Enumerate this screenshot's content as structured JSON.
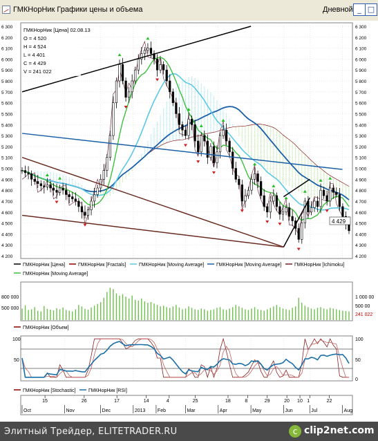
{
  "window": {
    "title": "ГМКНорНик Графики цены и объема",
    "period": "Дневной",
    "btn_min": "_",
    "btn_max": "□",
    "btn_close": "×"
  },
  "info_box": [
    "ГМКНорНик [Цена] 02.08.13",
    "O = 4 520",
    "H = 4 524",
    "L = 4 401",
    "C = 4 429",
    "V = 241 022"
  ],
  "chart_data": [
    {
      "type": "candlestick",
      "y_ticks": [
        "4 200",
        "4 300",
        "4 400",
        "4 500",
        "4 600",
        "4 700",
        "4 800",
        "4 900",
        "5 000",
        "5 100",
        "5 200",
        "5 300",
        "5 400",
        "5 500",
        "5 600",
        "5 700",
        "5 800",
        "5 900",
        "6 000",
        "6 100",
        "6 200",
        "6 300"
      ],
      "last_price_label": "4 429",
      "ylim": [
        4200,
        6300
      ],
      "close_series": [
        4980,
        4960,
        4950,
        4900,
        4880,
        4860,
        4840,
        4830,
        4850,
        4820,
        4800,
        4780,
        4820,
        4800,
        4760,
        4740,
        4720,
        4700,
        4650,
        4600,
        4570,
        4620,
        4700,
        4760,
        4820,
        4900,
        4980,
        5100,
        5300,
        5600,
        5800,
        5950,
        5800,
        5650,
        5700,
        5800,
        5900,
        6000,
        6050,
        6080,
        6100,
        6050,
        6000,
        5900,
        5950,
        5900,
        5800,
        5700,
        5600,
        5500,
        5400,
        5350,
        5300,
        5450,
        5400,
        5250,
        5150,
        5300,
        5250,
        5100,
        5200,
        5050,
        5150,
        5300,
        5350,
        5250,
        5150,
        5000,
        4900,
        4850,
        4700,
        4750,
        4800,
        4900,
        4950,
        4880,
        4750,
        4650,
        4600,
        4700,
        4750,
        4650,
        4580,
        4600,
        4640,
        4560,
        4520,
        4450,
        4350,
        4500,
        4700,
        4600,
        4640,
        4700,
        4650,
        4800,
        4750,
        4700,
        4820,
        4780,
        4760,
        4650,
        4560,
        4500,
        4429
      ],
      "legend": [
        "ГМКНорНик [Цена]",
        "ГМКНорНик [Fractals]",
        "ГМКНорНик [Moving Average]",
        "ГМКНорНик [Moving Average]",
        "ГМКНорНик [Ichimoku]",
        "ГМКНорНик [Moving Average]"
      ],
      "trendlines": [
        {
          "from": [
            "Oct",
            5700
          ],
          "to": [
            "May",
            6300
          ]
        },
        {
          "from": [
            "Oct",
            5100
          ],
          "to": [
            "Jun",
            4280
          ]
        },
        {
          "from": [
            "Oct",
            4570
          ],
          "to": [
            "Jun",
            4280
          ]
        },
        {
          "from": [
            "Oct",
            5320
          ],
          "to": [
            "Aug",
            4990
          ]
        },
        {
          "from": [
            "Jun",
            4740
          ],
          "to": [
            "Jul",
            4900
          ]
        },
        {
          "from": [
            "Jun",
            4280
          ],
          "to": [
            "Jul",
            4730
          ]
        }
      ]
    },
    {
      "type": "bar",
      "y_ticks_left": [
        "800 000",
        "500 000"
      ],
      "y_ticks_right": [
        "1 000 00",
        "500 00"
      ],
      "last_value_label": "241 022",
      "legend": [
        "ГМКНорНик [Объем]"
      ],
      "values": [
        320,
        410,
        280,
        300,
        360,
        260,
        240,
        390,
        310,
        290,
        270,
        330,
        300,
        350,
        280,
        260,
        240,
        300,
        420,
        380,
        310,
        290,
        350,
        400,
        450,
        500,
        620,
        780,
        900,
        860,
        740,
        680,
        720,
        650,
        600,
        680,
        560,
        540,
        600,
        520,
        480,
        500,
        460,
        420,
        380,
        400,
        360,
        340,
        380,
        420,
        350,
        300,
        320,
        380,
        340,
        300,
        280,
        320,
        300,
        260,
        280,
        300,
        340,
        360,
        300,
        280,
        320,
        360,
        420,
        380,
        340,
        300,
        280,
        320,
        360,
        300,
        280,
        260,
        300,
        340,
        380,
        420,
        360,
        320,
        300,
        280,
        340,
        380,
        620,
        480,
        400,
        360,
        320,
        300,
        340,
        360,
        320,
        300,
        340,
        320,
        300,
        280,
        260,
        250,
        241
      ]
    },
    {
      "type": "line",
      "y_ticks": [
        "100",
        "50",
        "0"
      ],
      "legend": [
        "ГМКНорНик [Stochastic]",
        "ГМКНорНик [RSI]"
      ],
      "x_ticks": [
        "15",
        "26",
        "17",
        "14",
        "4",
        "25",
        "18",
        "8",
        "29",
        "20",
        "10",
        "1",
        "22"
      ],
      "month_labels": [
        "Oct",
        "Nov",
        "Dec",
        "2013",
        "Feb",
        "Mar",
        "Apr",
        "May",
        "Jun",
        "Jul",
        "Aug"
      ]
    }
  ],
  "footer": {
    "text": "Элитный Трейдер, ELITETRADER.RU",
    "brand": "clip2net.com",
    "brand_mark": "c"
  }
}
